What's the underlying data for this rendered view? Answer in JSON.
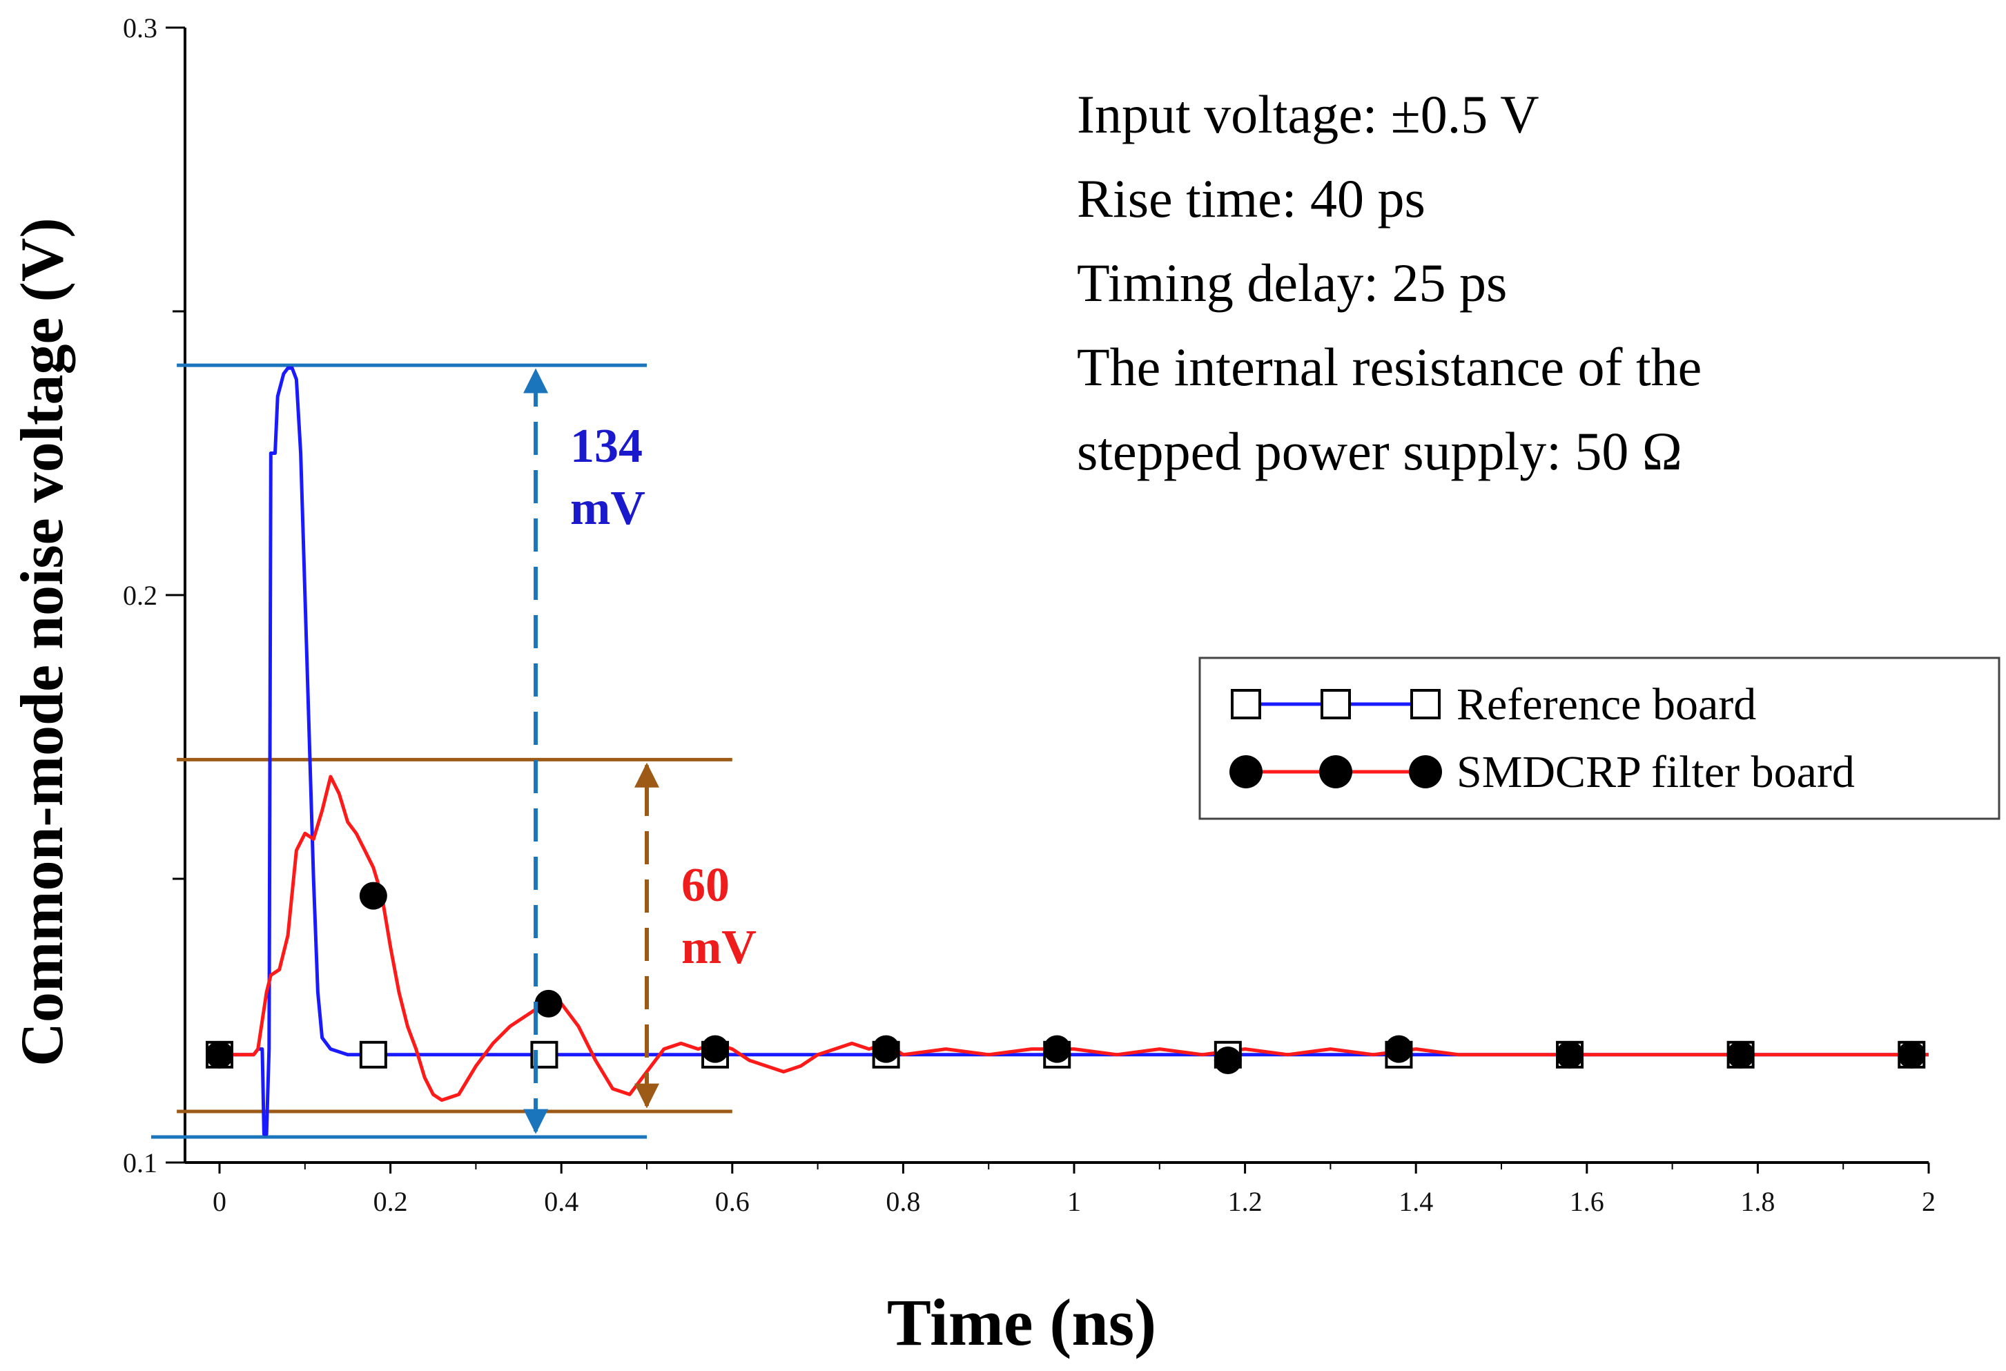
{
  "chart_data": {
    "type": "line",
    "xlabel": "Time (ns)",
    "ylabel": "Common-mode noise voltage (V)",
    "xlim": [
      0,
      2
    ],
    "ylim": [
      0.1,
      0.3
    ],
    "x_ticks": [
      "0",
      "0.2",
      "0.4",
      "0.6",
      "0.8",
      "1",
      "1.2",
      "1.4",
      "1.6",
      "1.8",
      "2"
    ],
    "y_tick_labels": [
      {
        "value": 0.1,
        "label": "0.1"
      },
      {
        "value": 0.2,
        "label": "0.2"
      },
      {
        "value": 0.3,
        "label": "0.3"
      }
    ],
    "y_minor_ticks": [
      0.15,
      0.25
    ],
    "legend_position": "right",
    "series": [
      {
        "name": "Reference board",
        "color": "#1a1aff",
        "marker": "open-square",
        "points": [
          [
            0,
            0.119
          ],
          [
            0.04,
            0.119
          ],
          [
            0.045,
            0.12
          ],
          [
            0.05,
            0.12
          ],
          [
            0.052,
            0.105
          ],
          [
            0.055,
            0.105
          ],
          [
            0.058,
            0.12
          ],
          [
            0.06,
            0.225
          ],
          [
            0.065,
            0.225
          ],
          [
            0.068,
            0.235
          ],
          [
            0.075,
            0.239
          ],
          [
            0.08,
            0.24
          ],
          [
            0.085,
            0.24
          ],
          [
            0.09,
            0.238
          ],
          [
            0.095,
            0.225
          ],
          [
            0.1,
            0.2
          ],
          [
            0.105,
            0.175
          ],
          [
            0.11,
            0.15
          ],
          [
            0.115,
            0.13
          ],
          [
            0.12,
            0.122
          ],
          [
            0.13,
            0.12
          ],
          [
            0.15,
            0.119
          ],
          [
            2.0,
            0.119
          ]
        ],
        "marker_x": [
          0,
          0.18,
          0.38,
          0.58,
          0.78,
          0.98,
          1.18,
          1.38,
          1.58,
          1.78,
          1.98
        ]
      },
      {
        "name": "SMDCRP filter board",
        "color": "#ff1a1a",
        "marker": "filled-circle",
        "points": [
          [
            0,
            0.119
          ],
          [
            0.04,
            0.119
          ],
          [
            0.045,
            0.12
          ],
          [
            0.05,
            0.125
          ],
          [
            0.055,
            0.13
          ],
          [
            0.06,
            0.133
          ],
          [
            0.07,
            0.134
          ],
          [
            0.08,
            0.14
          ],
          [
            0.09,
            0.155
          ],
          [
            0.1,
            0.158
          ],
          [
            0.11,
            0.157
          ],
          [
            0.12,
            0.162
          ],
          [
            0.13,
            0.168
          ],
          [
            0.14,
            0.165
          ],
          [
            0.15,
            0.16
          ],
          [
            0.16,
            0.158
          ],
          [
            0.17,
            0.155
          ],
          [
            0.18,
            0.152
          ],
          [
            0.19,
            0.147
          ],
          [
            0.2,
            0.138
          ],
          [
            0.21,
            0.13
          ],
          [
            0.22,
            0.124
          ],
          [
            0.23,
            0.12
          ],
          [
            0.24,
            0.115
          ],
          [
            0.25,
            0.112
          ],
          [
            0.26,
            0.111
          ],
          [
            0.28,
            0.112
          ],
          [
            0.3,
            0.117
          ],
          [
            0.32,
            0.121
          ],
          [
            0.34,
            0.124
          ],
          [
            0.36,
            0.126
          ],
          [
            0.38,
            0.128
          ],
          [
            0.4,
            0.128
          ],
          [
            0.42,
            0.124
          ],
          [
            0.44,
            0.118
          ],
          [
            0.46,
            0.113
          ],
          [
            0.48,
            0.112
          ],
          [
            0.5,
            0.116
          ],
          [
            0.52,
            0.12
          ],
          [
            0.54,
            0.121
          ],
          [
            0.56,
            0.12
          ],
          [
            0.58,
            0.121
          ],
          [
            0.6,
            0.12
          ],
          [
            0.62,
            0.118
          ],
          [
            0.64,
            0.117
          ],
          [
            0.66,
            0.116
          ],
          [
            0.68,
            0.117
          ],
          [
            0.7,
            0.119
          ],
          [
            0.72,
            0.12
          ],
          [
            0.74,
            0.121
          ],
          [
            0.76,
            0.12
          ],
          [
            0.78,
            0.121
          ],
          [
            0.8,
            0.119
          ],
          [
            0.85,
            0.12
          ],
          [
            0.9,
            0.119
          ],
          [
            0.95,
            0.12
          ],
          [
            1.0,
            0.12
          ],
          [
            1.05,
            0.119
          ],
          [
            1.1,
            0.12
          ],
          [
            1.15,
            0.119
          ],
          [
            1.2,
            0.12
          ],
          [
            1.25,
            0.119
          ],
          [
            1.3,
            0.12
          ],
          [
            1.35,
            0.119
          ],
          [
            1.4,
            0.12
          ],
          [
            1.45,
            0.119
          ],
          [
            1.5,
            0.119
          ],
          [
            2.0,
            0.119
          ]
        ],
        "markers": [
          [
            0,
            0.119
          ],
          [
            0.18,
            0.147
          ],
          [
            0.385,
            0.128
          ],
          [
            0.58,
            0.12
          ],
          [
            0.78,
            0.12
          ],
          [
            0.98,
            0.12
          ],
          [
            1.18,
            0.118
          ],
          [
            1.38,
            0.12
          ],
          [
            1.58,
            0.119
          ],
          [
            1.78,
            0.119
          ],
          [
            1.98,
            0.119
          ]
        ]
      }
    ],
    "reference_lines": [
      {
        "name": "reference-peak-line",
        "y": 0.2405,
        "x_range": [
          -0.05,
          0.5
        ],
        "color": "#1b75bc"
      },
      {
        "name": "reference-trough-line",
        "y": 0.1045,
        "x_range": [
          -0.08,
          0.5
        ],
        "color": "#1b75bc"
      },
      {
        "name": "filter-peak-line",
        "y": 0.171,
        "x_range": [
          -0.05,
          0.6
        ],
        "color": "#9c5a16"
      },
      {
        "name": "filter-trough-line",
        "y": 0.109,
        "x_range": [
          -0.05,
          0.6
        ],
        "color": "#9c5a16"
      }
    ],
    "measurements": [
      {
        "name": "134-mv",
        "x": 0.37,
        "y_range": [
          0.1045,
          0.2405
        ],
        "color": "#1b75bc",
        "label_line1": "134",
        "label_line2": "mV",
        "label_color": "#1a1acc"
      },
      {
        "name": "60-mv",
        "x": 0.5,
        "y_range": [
          0.109,
          0.171
        ],
        "color": "#9c5a16",
        "label_line1": "60",
        "label_line2": "mV",
        "label_color": "#ee1c1c"
      }
    ],
    "annotations": [
      "Input voltage:  ±0.5 V",
      "Rise time: 40 ps",
      "Timing delay: 25 ps",
      "The internal resistance of the",
      "stepped power supply: 50 Ω"
    ]
  }
}
